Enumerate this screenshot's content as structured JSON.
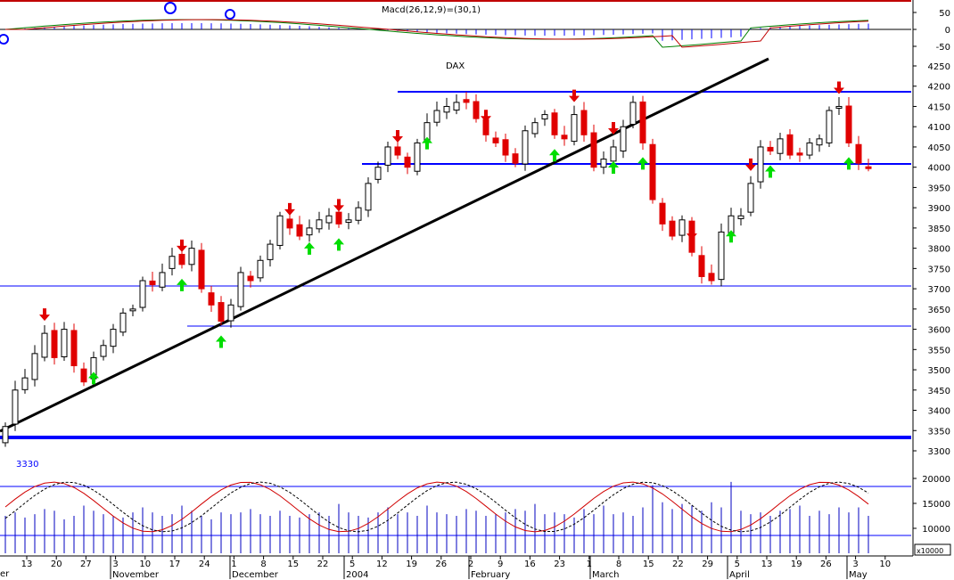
{
  "chart_data": {
    "type": "candlestick",
    "title": "DAX",
    "oscillator_label": "Macd(26,12,9)=(30,1)",
    "oscillator_ticks": [
      "50",
      "0",
      "-50"
    ],
    "volume_unit": "x10000",
    "volume_ticks": [
      "20000",
      "15000",
      "10000"
    ],
    "price_ticks": [
      "4250",
      "4200",
      "4150",
      "4100",
      "4050",
      "4000",
      "3950",
      "3900",
      "3850",
      "3800",
      "3750",
      "3700",
      "3650",
      "3600",
      "3550",
      "3500",
      "3450",
      "3400",
      "3350",
      "3300"
    ],
    "price_ylim": [
      3300,
      4270
    ],
    "date_labels": [
      "13",
      "20",
      "27",
      "3",
      "10",
      "17",
      "24",
      "1",
      "8",
      "15",
      "22",
      "5",
      "12",
      "19",
      "26",
      "2",
      "9",
      "16",
      "23",
      "1",
      "8",
      "15",
      "22",
      "29",
      "5",
      "13",
      "19",
      "26",
      "3",
      "10"
    ],
    "month_labels": [
      "November",
      "December",
      "2004",
      "February",
      "March",
      "April",
      "May"
    ],
    "corner_label": "er",
    "stochastic_label": "3330",
    "closes": [
      3360,
      3450,
      3480,
      3540,
      3590,
      3530,
      3600,
      3510,
      3470,
      3530,
      3560,
      3600,
      3640,
      3650,
      3720,
      3710,
      3740,
      3780,
      3760,
      3800,
      3700,
      3660,
      3620,
      3660,
      3740,
      3720,
      3770,
      3810,
      3880,
      3850,
      3830,
      3850,
      3870,
      3880,
      3860,
      3870,
      3900,
      3960,
      4000,
      4050,
      4030,
      4000,
      4060,
      4110,
      4140,
      4150,
      4160,
      4160,
      4120,
      4080,
      4060,
      4030,
      4010,
      4090,
      4110,
      4130,
      4080,
      4070,
      4130,
      4080,
      4000,
      4020,
      4050,
      4100,
      4160,
      4060,
      3920,
      3860,
      3830,
      3870,
      3790,
      3730,
      3720,
      3840,
      3880,
      3880,
      3960,
      4050,
      4040,
      4070,
      4030,
      4030,
      4060,
      4070,
      4140,
      4150,
      4060,
      4010,
      4000
    ],
    "support_levels": [
      4180,
      3985,
      3680,
      3585,
      3330
    ],
    "trendline": {
      "start": [
        0,
        3350
      ],
      "end": [
        86,
        4250
      ]
    },
    "up_signal_indices": [
      9,
      18,
      22,
      31,
      34,
      43,
      56,
      62,
      65,
      74,
      78,
      86,
      89
    ],
    "down_signal_indices": [
      4,
      18,
      29,
      34,
      40,
      49,
      58,
      62,
      70,
      76,
      85,
      95
    ],
    "volume_values": [
      11000,
      12000,
      10500,
      11500,
      13000,
      12500,
      10000,
      11000,
      14000,
      12500,
      11500,
      11000,
      10500,
      12000,
      13500,
      12000,
      11000,
      11500,
      14000,
      12500,
      11000,
      10000,
      12000,
      11500,
      12000,
      13000,
      11500,
      11000,
      12500,
      11000,
      10500,
      11500,
      12000,
      11000,
      14500,
      12000,
      11000,
      10500,
      12000,
      13500,
      11500,
      12000,
      11000,
      14000,
      12000,
      11500,
      11000,
      13000,
      12500,
      11000,
      11500,
      12000,
      13000,
      12500,
      14500,
      11500,
      12000,
      11500,
      10500,
      13000,
      11500,
      14000,
      11500,
      12000,
      11000,
      13500,
      20000,
      15000,
      13000,
      14500,
      14000,
      12500,
      15000,
      13500,
      21000,
      12500,
      11500,
      12000,
      11000,
      12500,
      13000,
      14000,
      11000,
      12500,
      11500,
      13500,
      12000,
      13500,
      11000
    ]
  }
}
